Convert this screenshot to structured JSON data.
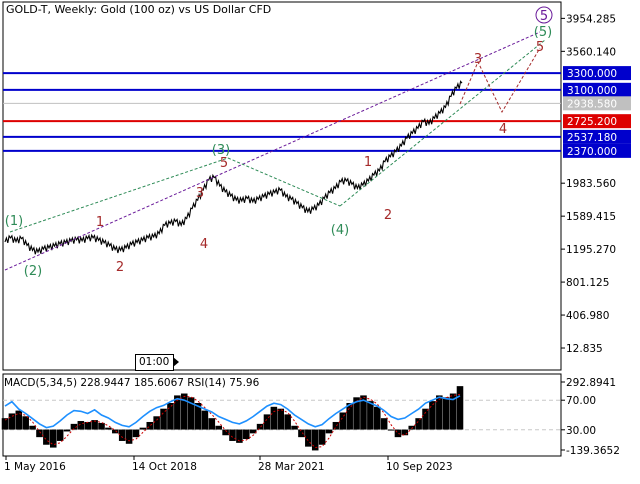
{
  "window": {
    "title": "GOLD-T, Weekly:  Gold (100 oz) vs US Dollar CFD",
    "timeframe_marker": "01:00"
  },
  "colors": {
    "price_line": "#000000",
    "level_blue": "#0000cc",
    "level_red": "#dd0000",
    "current_price": "#c0c0c0",
    "wave_red": "#a52a2a",
    "wave_green": "#2e8b57",
    "wave_purple": "#6a1b9a",
    "macd_hist": "#000000",
    "macd_signal": "#cc0000",
    "rsi_line": "#1e90ff",
    "frame": "#000000",
    "grid_dashed": "#c8c8c8"
  },
  "chart_data": [
    {
      "type": "line",
      "pane": "price",
      "title": "GOLD-T, Weekly:  Gold (100 oz) vs US Dollar CFD",
      "xlabel": "",
      "ylabel": "",
      "ylim": [
        -250,
        4150
      ],
      "x_ticks": [
        "1 May 2016",
        "14 Oct 2018",
        "28 Mar 2021",
        "10 Sep 2023"
      ],
      "y_ticks": [
        "3954.285",
        "3560.140",
        "1983.560",
        "1589.415",
        "1195.270",
        "801.125",
        "406.980",
        "12.835"
      ],
      "series": [
        {
          "values": [
            1280,
            1330,
            1285,
            1320,
            1240,
            1180,
            1160,
            1195,
            1210,
            1230,
            1255,
            1270,
            1290,
            1305,
            1295,
            1320,
            1330,
            1300,
            1270,
            1235,
            1190,
            1180,
            1210,
            1250,
            1275,
            1300,
            1330,
            1340,
            1380,
            1480,
            1500,
            1525,
            1480,
            1560,
            1680,
            1780,
            1900,
            2020,
            2050,
            1950,
            1880,
            1830,
            1780,
            1770,
            1800,
            1760,
            1790,
            1820,
            1850,
            1870,
            1900,
            1820,
            1790,
            1740,
            1690,
            1640,
            1670,
            1720,
            1800,
            1870,
            1920,
            2000,
            2010,
            1970,
            1920,
            1960,
            2010,
            2080,
            2130,
            2240,
            2300,
            2360,
            2430,
            2520,
            2580,
            2640,
            2720,
            2690,
            2760,
            2820,
            2890,
            3020,
            3120,
            3180
          ]
        }
      ],
      "current_price": {
        "label": "2938.580",
        "value": 2938.58
      },
      "levels": [
        {
          "label": "3300.000",
          "value": 3300.0,
          "color": "#0000cc"
        },
        {
          "label": "3100.000",
          "value": 3100.0,
          "color": "#0000cc"
        },
        {
          "label": "2725.200",
          "value": 2725.2,
          "color": "#dd0000"
        },
        {
          "label": "2537.180",
          "value": 2537.18,
          "color": "#0000cc"
        },
        {
          "label": "2370.000",
          "value": 2370.0,
          "color": "#0000cc"
        }
      ],
      "wave_labels": [
        {
          "text": "(1)",
          "color": "green"
        },
        {
          "text": "(2)",
          "color": "green"
        },
        {
          "text": "1",
          "color": "red"
        },
        {
          "text": "2",
          "color": "red"
        },
        {
          "text": "3",
          "color": "red"
        },
        {
          "text": "4",
          "color": "red"
        },
        {
          "text": "(3)",
          "color": "green"
        },
        {
          "text": "5",
          "color": "red"
        },
        {
          "text": "(4)",
          "color": "green"
        },
        {
          "text": "1",
          "color": "red"
        },
        {
          "text": "2",
          "color": "red"
        },
        {
          "text": "3",
          "color": "red"
        },
        {
          "text": "4",
          "color": "red"
        },
        {
          "text": "5",
          "color": "red"
        },
        {
          "text": "(5)",
          "color": "green"
        },
        {
          "text": "5",
          "color": "purple",
          "circled": true
        }
      ]
    },
    {
      "type": "bar",
      "pane": "indicator",
      "title": "MACD(5,34,5) 228.9447 185.6067 RSI(14) 75.96",
      "ylim": [
        -139.3652,
        292.8941
      ],
      "y_ticks": [
        "292.8941",
        "70.00",
        "30.00",
        "-139.3652"
      ],
      "rsi_levels": [
        70,
        30
      ],
      "series": [
        {
          "name": "MACD",
          "values": [
            60,
            85,
            100,
            70,
            20,
            -40,
            -80,
            -95,
            -60,
            -10,
            30,
            45,
            40,
            50,
            35,
            10,
            -20,
            -60,
            -75,
            -40,
            10,
            40,
            70,
            110,
            140,
            180,
            190,
            170,
            140,
            100,
            60,
            20,
            -30,
            -60,
            -70,
            -50,
            -20,
            30,
            80,
            120,
            110,
            80,
            20,
            -40,
            -90,
            -110,
            -80,
            -20,
            40,
            90,
            140,
            170,
            180,
            150,
            120,
            60,
            0,
            -40,
            -30,
            20,
            60,
            110,
            150,
            180,
            170,
            190,
            228.9
          ]
        },
        {
          "name": "Signal",
          "values": [
            50,
            70,
            85,
            75,
            40,
            -10,
            -55,
            -80,
            -70,
            -35,
            5,
            30,
            38,
            45,
            38,
            20,
            -5,
            -40,
            -60,
            -50,
            -15,
            20,
            50,
            90,
            120,
            155,
            175,
            172,
            150,
            115,
            80,
            40,
            -5,
            -40,
            -60,
            -55,
            -30,
            10,
            55,
            95,
            105,
            90,
            45,
            -10,
            -60,
            -95,
            -90,
            -45,
            15,
            65,
            115,
            150,
            170,
            160,
            135,
            85,
            25,
            -20,
            -30,
            5,
            45,
            90,
            130,
            160,
            168,
            180,
            185.6
          ]
        },
        {
          "name": "RSI",
          "values": [
            62,
            68,
            58,
            52,
            45,
            38,
            33,
            35,
            42,
            50,
            56,
            55,
            52,
            57,
            50,
            46,
            40,
            36,
            34,
            40,
            48,
            55,
            60,
            63,
            68,
            72,
            70,
            66,
            62,
            58,
            54,
            48,
            44,
            40,
            38,
            42,
            48,
            55,
            62,
            66,
            64,
            58,
            50,
            44,
            38,
            34,
            37,
            45,
            52,
            58,
            64,
            68,
            70,
            66,
            62,
            56,
            48,
            44,
            46,
            52,
            58,
            66,
            70,
            74,
            72,
            71,
            75.96
          ]
        }
      ]
    }
  ]
}
